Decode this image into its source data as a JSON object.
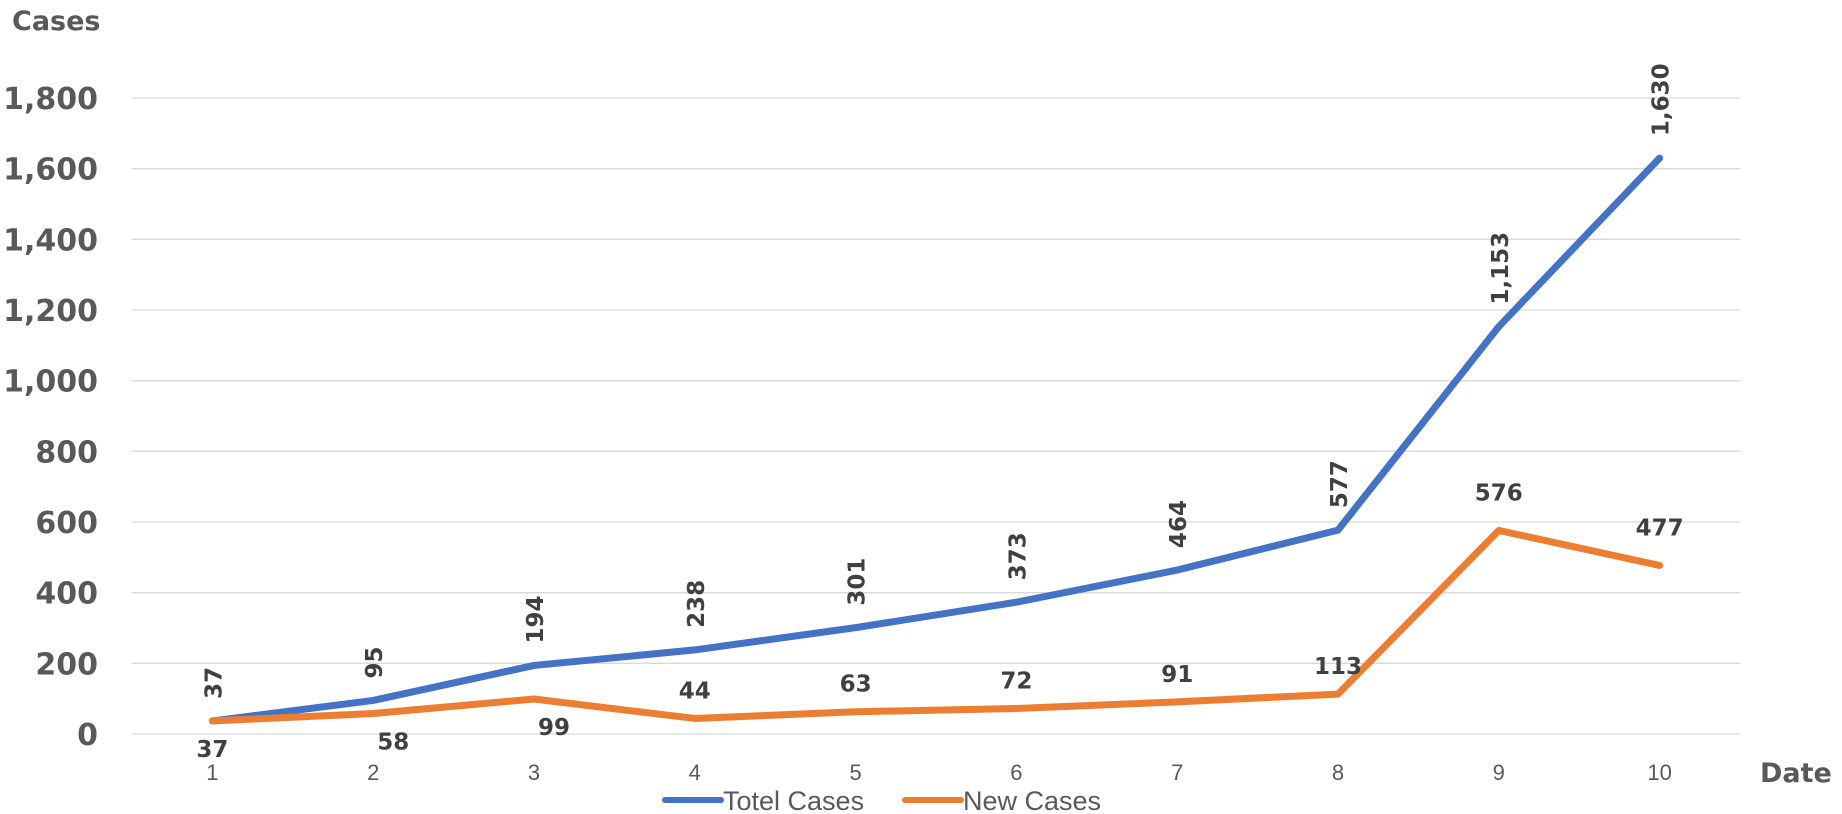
{
  "chart_data": {
    "type": "line",
    "title": "",
    "xlabel": "Date",
    "ylabel": "Cases",
    "x": [
      1,
      2,
      3,
      4,
      5,
      6,
      7,
      8,
      9,
      10
    ],
    "x_tick_labels": [
      "1",
      "2",
      "3",
      "4",
      "5",
      "6",
      "7",
      "8",
      "9",
      "10"
    ],
    "y_tick_labels": [
      "0",
      "200",
      "400",
      "600",
      "800",
      "1,000",
      "1,200",
      "1,400",
      "1,600",
      "1,800"
    ],
    "ylim": [
      0,
      1800
    ],
    "y_tick_step": 200,
    "grid": true,
    "legend_position": "bottom",
    "series": [
      {
        "name": "Totel Cases",
        "color": "#4472c4",
        "values": [
          37,
          95,
          194,
          238,
          301,
          373,
          464,
          577,
          1153,
          1630
        ],
        "data_labels": [
          "37",
          "95",
          "194",
          "238",
          "301",
          "373",
          "464",
          "577",
          "1,153",
          "1,630"
        ],
        "label_rotation": "vertical"
      },
      {
        "name": "New Cases",
        "color": "#ed7d31",
        "values": [
          37,
          58,
          99,
          44,
          63,
          72,
          91,
          113,
          576,
          477
        ],
        "data_labels": [
          "37",
          "58",
          "99",
          "44",
          "63",
          "72",
          "91",
          "113",
          "576",
          "477"
        ],
        "label_rotation": "horizontal"
      }
    ]
  }
}
